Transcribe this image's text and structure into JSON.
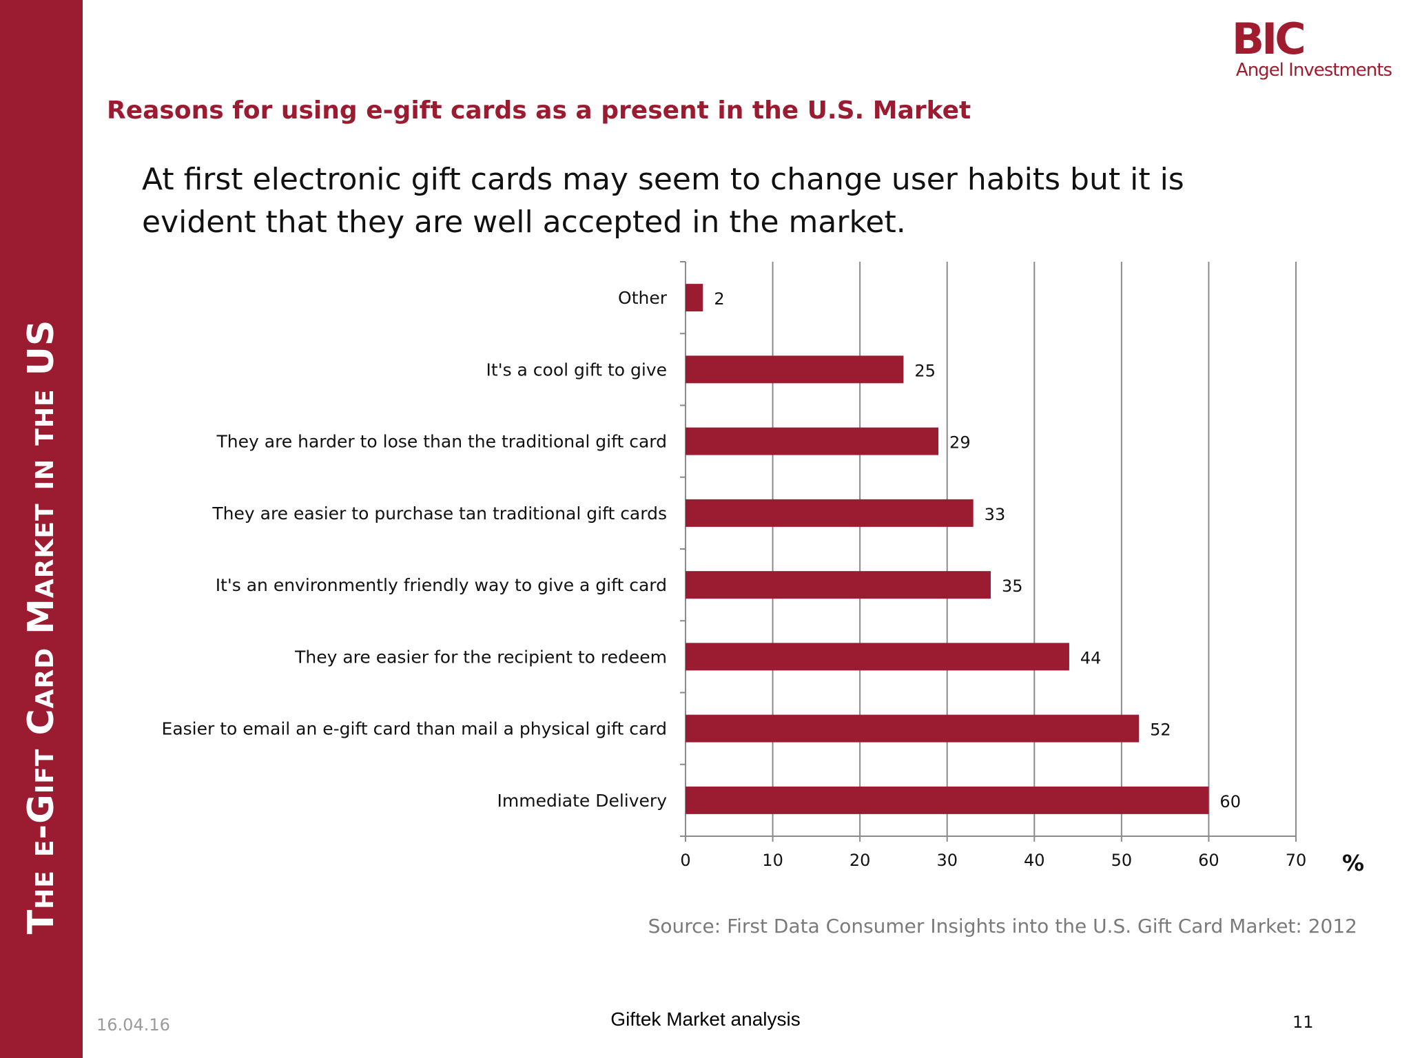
{
  "sidebar": {
    "title": "The e-Gift Card Market in the US"
  },
  "logo": {
    "main": "BIC",
    "sub": "Angel Investments"
  },
  "header": {
    "title": "Reasons for using e-gift cards as a present in the U.S. Market",
    "subtitle": "At first electronic gift cards may seem to change user habits but it is evident that they are well accepted in the market."
  },
  "chart_data": {
    "type": "bar",
    "orientation": "horizontal",
    "categories": [
      "Other",
      "It's a cool gift to give",
      "They are harder to lose than the traditional gift card",
      "They are easier to purchase tan traditional gift cards",
      "It's an environmently friendly way to give a gift card",
      "They are easier for the recipient to redeem",
      "Easier to email an e-gift card than mail a physical gift card",
      "Immediate Delivery"
    ],
    "values": [
      2,
      25,
      29,
      33,
      35,
      44,
      52,
      60
    ],
    "xlim": [
      0,
      70
    ],
    "xticks": [
      0,
      10,
      20,
      30,
      40,
      50,
      60,
      70
    ],
    "xunit": "%",
    "grid": true,
    "bar_color": "#9b1c31",
    "data_labels": true
  },
  "source": "Source: First Data Consumer Insights into the U.S. Gift Card Market: 2012",
  "footer": {
    "date": "16.04.16",
    "center": "Giftek Market analysis",
    "page": "11"
  }
}
